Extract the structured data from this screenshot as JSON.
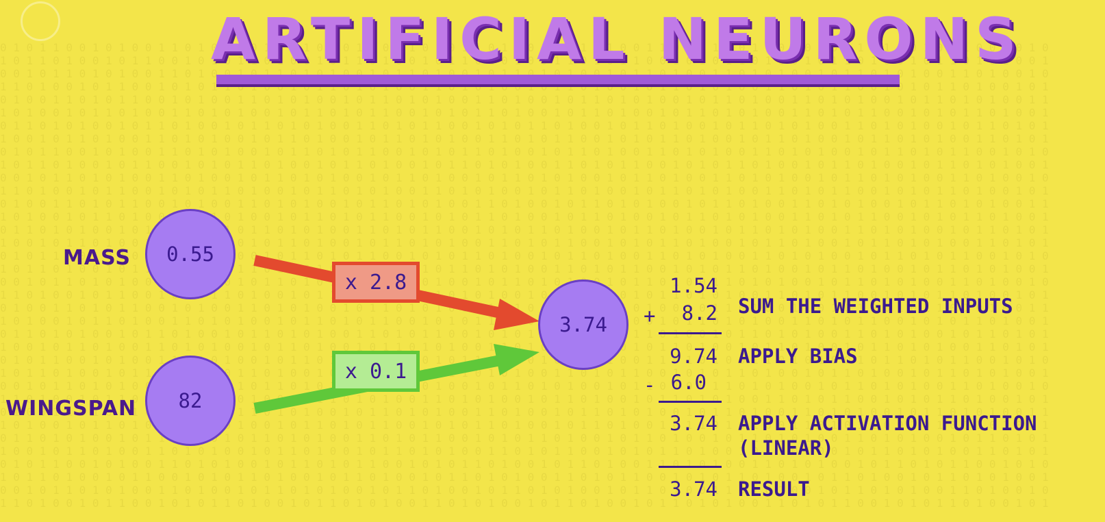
{
  "title": "ARTIFICIAL NEURONS",
  "inputs": [
    {
      "label": "MASS",
      "value": "0.55",
      "weight": "x 2.8"
    },
    {
      "label": "WINGSPAN",
      "value": "82",
      "weight": "x 0.1"
    }
  ],
  "output_node": {
    "value": "3.74"
  },
  "calculation": {
    "weighted_1": "1.54",
    "sum_op": "+",
    "weighted_2": "8.2",
    "sum": "9.74",
    "bias_op": "-",
    "bias": "6.0",
    "activated": "3.74",
    "result": "3.74",
    "steps": {
      "sum": "SUM THE WEIGHTED INPUTS",
      "bias": "APPLY BIAS",
      "activation_line1": "APPLY ACTIVATION FUNCTION",
      "activation_line2": "(LINEAR)",
      "result": "RESULT"
    }
  },
  "colors": {
    "background": "#f3e54a",
    "node": "#a67cf2",
    "red_arrow": "#e34a2e",
    "green_arrow": "#5fc83a",
    "text": "#3b1a8f"
  }
}
